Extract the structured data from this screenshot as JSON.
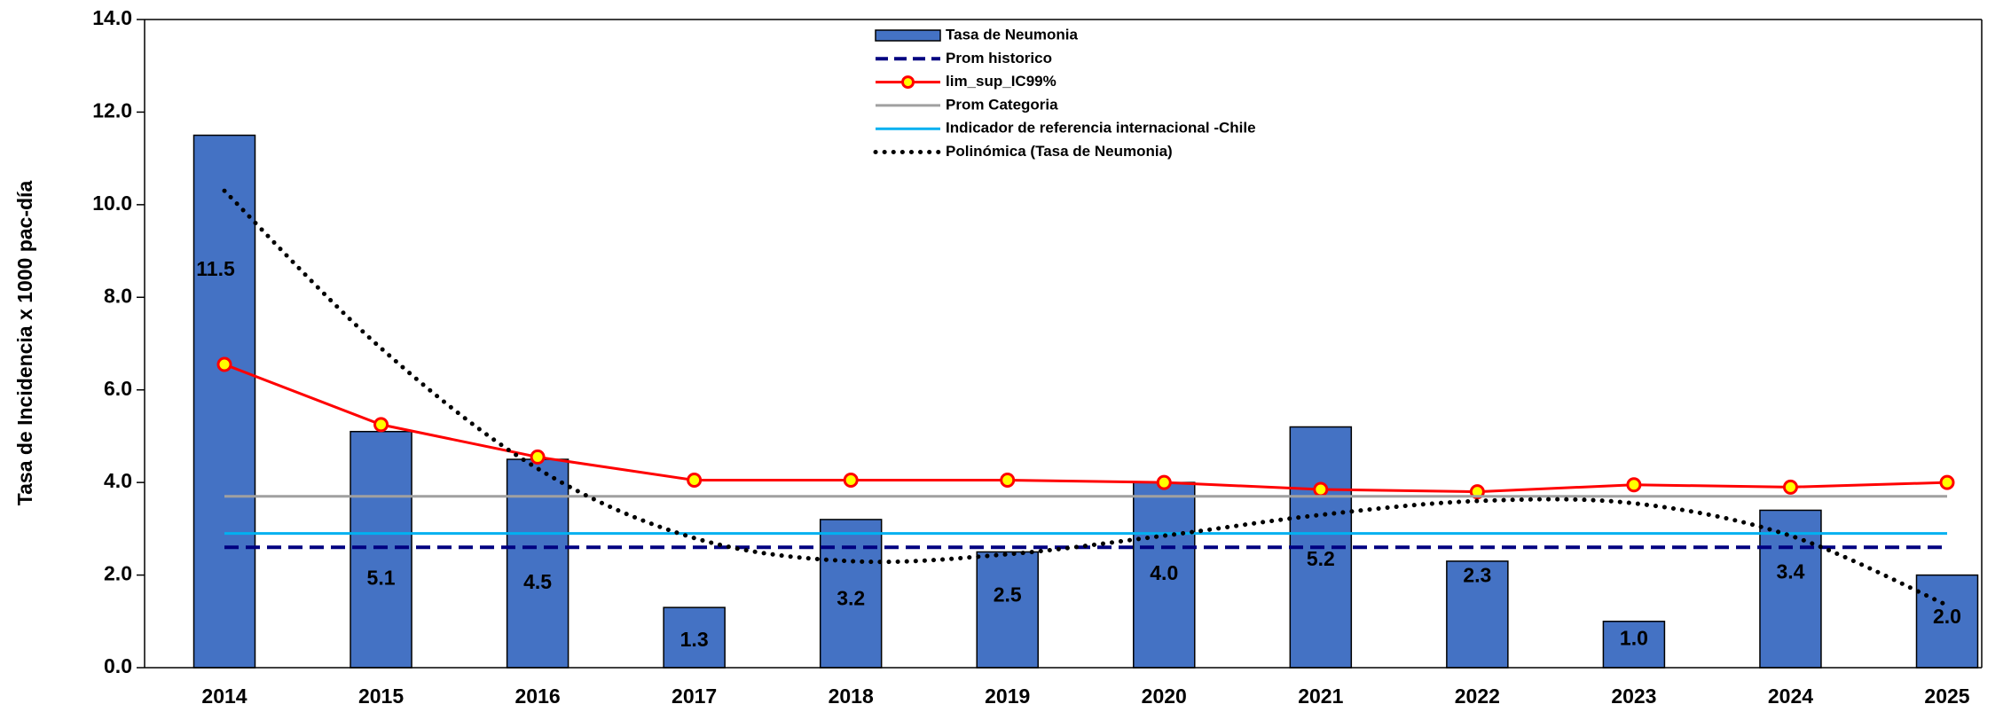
{
  "chart_data": {
    "type": "bar",
    "y_label": "Tasa de Incidencia x 1000 pac-día",
    "categories": [
      "2014",
      "2015",
      "2016",
      "2017",
      "2018",
      "2019",
      "2020",
      "2021",
      "2022",
      "2023",
      "2024",
      "2025"
    ],
    "ylim": [
      0,
      14
    ],
    "yticks": [
      {
        "value": 0,
        "label": "0.0"
      },
      {
        "value": 2,
        "label": "2.0"
      },
      {
        "value": 4,
        "label": "4.0"
      },
      {
        "value": 6,
        "label": "6.0"
      },
      {
        "value": 8,
        "label": "8.0"
      },
      {
        "value": 10,
        "label": "10.0"
      },
      {
        "value": 12,
        "label": "12.0"
      },
      {
        "value": 14,
        "label": "14.0"
      }
    ],
    "series": [
      {
        "name": "Tasa de Neumonia",
        "style": "bar",
        "color": "#4472c4",
        "values": [
          11.5,
          5.1,
          4.5,
          1.3,
          3.2,
          2.5,
          4.0,
          5.2,
          2.3,
          1.0,
          3.4,
          2.0
        ],
        "value_labels": [
          "11.5",
          "5.1",
          "4.5",
          "1.3",
          "3.2",
          "2.5",
          "4.0",
          "5.2",
          "2.3",
          "1.0",
          "3.4",
          "2.0"
        ]
      },
      {
        "name": "Prom historico",
        "style": "dashed",
        "color": "#000080",
        "values": [
          2.6,
          2.6,
          2.6,
          2.6,
          2.6,
          2.6,
          2.6,
          2.6,
          2.6,
          2.6,
          2.6,
          2.6
        ]
      },
      {
        "name": "lim_sup_IC99%",
        "style": "marker-line",
        "color": "#ff0000",
        "marker_color": "#ffff00",
        "values": [
          6.55,
          5.25,
          4.55,
          4.05,
          4.05,
          4.05,
          4.0,
          3.85,
          3.8,
          3.95,
          3.9,
          4.0
        ]
      },
      {
        "name": "Prom Categoria",
        "style": "line",
        "color": "#a0a0a0",
        "values": [
          3.7,
          3.7,
          3.7,
          3.7,
          3.7,
          3.7,
          3.7,
          3.7,
          3.7,
          3.7,
          3.7,
          3.7
        ]
      },
      {
        "name": "Indicador de referencia internacional -Chile",
        "style": "line",
        "color": "#00b0f0",
        "values": [
          2.9,
          2.9,
          2.9,
          2.9,
          2.9,
          2.9,
          2.9,
          2.9,
          2.9,
          2.9,
          2.9,
          2.9
        ]
      },
      {
        "name": "Polinómica (Tasa de Neumonia)",
        "style": "dotted",
        "color": "#000000",
        "values": [
          10.3,
          6.9,
          4.3,
          2.8,
          2.3,
          2.45,
          2.85,
          3.3,
          3.6,
          3.55,
          2.85,
          1.35
        ]
      }
    ]
  }
}
